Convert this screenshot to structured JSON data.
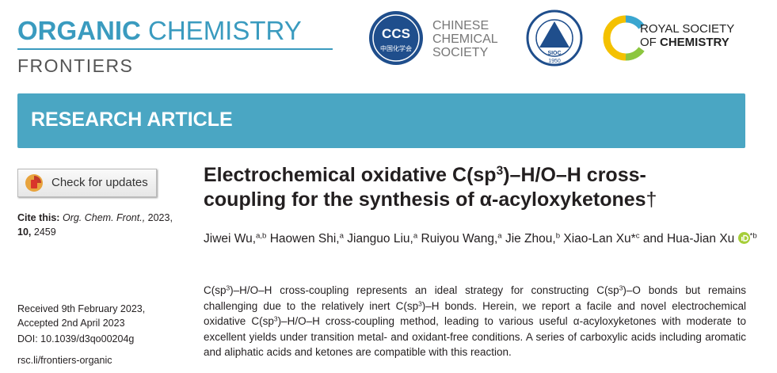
{
  "header": {
    "journal": [
      "ORGANIC",
      "CHEMISTRY",
      "FRONTIERS"
    ]
  },
  "logos": {
    "ccs": {
      "abbr": "CCS",
      "chinese": "中国化学会",
      "name": [
        "CHINESE",
        "CHEMICAL",
        "SOCIETY"
      ]
    },
    "sioc": {
      "abbr": "SIOC",
      "year": "1950"
    },
    "rsc": {
      "name": [
        "ROYAL SOCIETY",
        "OF",
        "CHEMISTRY"
      ]
    }
  },
  "banner": "RESEARCH ARTICLE",
  "check_updates": "Check for updates",
  "citation": {
    "label": "Cite this:",
    "journal": "Org. Chem. Front.,",
    "year": "2023,",
    "volume": "10,",
    "page": "2459"
  },
  "dates": {
    "received": "Received 9th February 2023,",
    "accepted": "Accepted 2nd April 2023",
    "doi": "DOI: 10.1039/d3qo00204g",
    "link": "rsc.li/frontiers-organic"
  },
  "article": {
    "title": [
      "Electrochemical oxidative C(sp",
      "3",
      ")–H/O–H cross-coupling for the synthesis of α-acyloxyketones",
      "†"
    ],
    "authors": [
      "Jiwei Wu,",
      "a,b",
      "Haowen Shi,",
      "a",
      "Jianguo Liu,",
      "a",
      "Ruiyou Wang,",
      "a",
      "Jie Zhou,",
      "b",
      "Xiao-Lan Xu*",
      "c",
      "and Hua-Jian Xu",
      "*b"
    ],
    "abstract": [
      "C(sp",
      "3",
      ")–H/O–H cross-coupling represents an ideal strategy for constructing C(sp",
      "3",
      ")–O bonds but remains challenging due to the relatively inert C(sp",
      "3",
      ")–H bonds. Herein, we report a facile and novel electrochemical oxidative C(sp",
      "3",
      ")–H/O–H cross-coupling method, leading to various useful α-acyloxyketones with moderate to excellent yields under transition metal- and oxidant-free conditions. A series of carboxylic acids including aromatic and aliphatic acids and ketones are compatible with this reaction."
    ]
  }
}
